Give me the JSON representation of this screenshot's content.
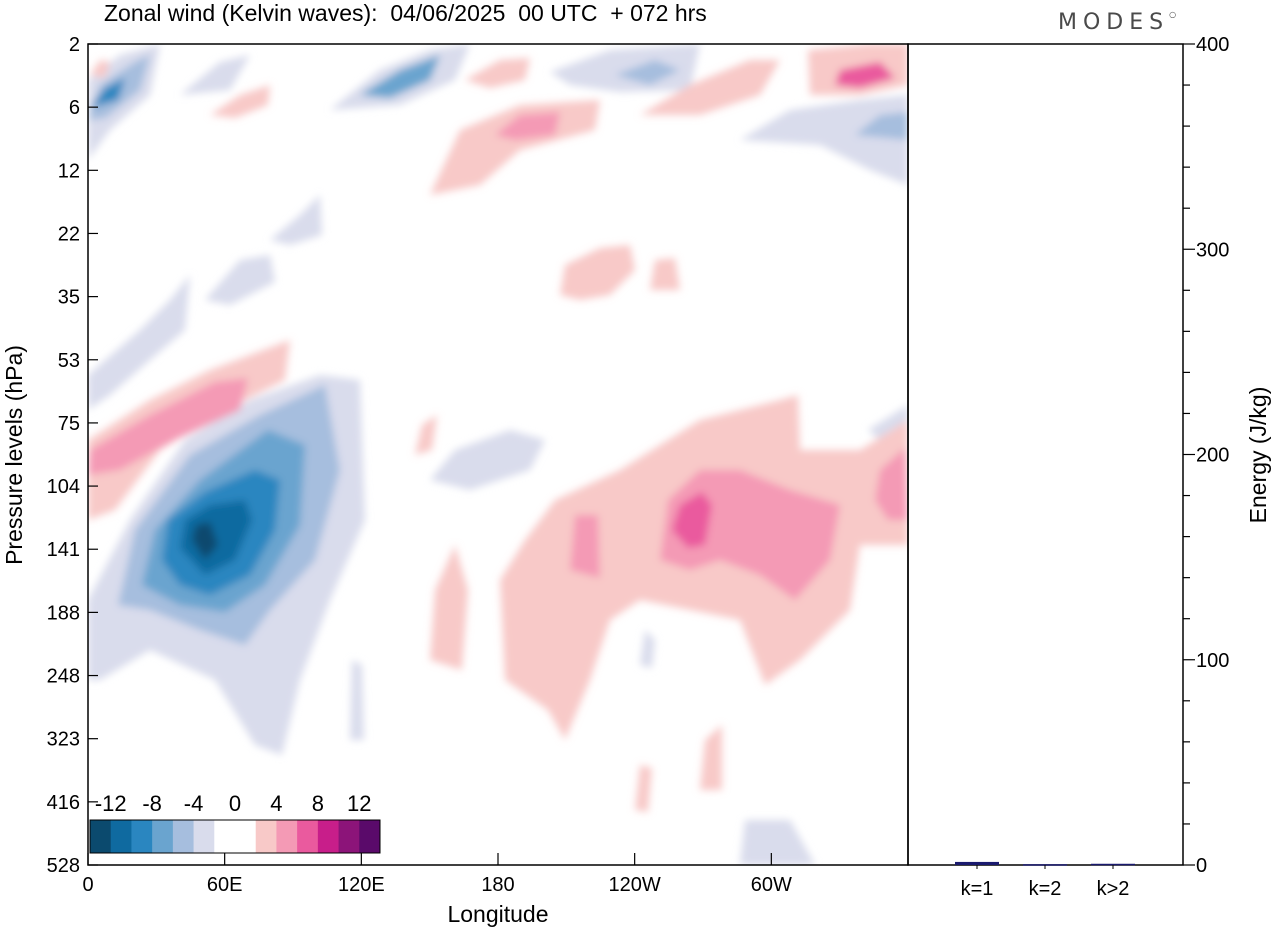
{
  "title": "Zonal wind (Kelvin waves):  04/06/2025  00 UTC  + 072 hrs",
  "brand": "MODES",
  "colors": {
    "neg": [
      "#0b4a6e",
      "#0f6aa0",
      "#2a86c0",
      "#6aa4cf",
      "#a6bede",
      "#d9dcec"
    ],
    "pos": [
      "#f8c9c8",
      "#f49ab5",
      "#ea5a9e",
      "#c81e8a",
      "#8c1479",
      "#5a0a6a"
    ],
    "bar": "#1a1a6e"
  },
  "chart_data": [
    {
      "type": "heatmap",
      "title": "",
      "xlabel": "Longitude",
      "ylabel": "Pressure levels (hPa)",
      "x_ticks": [
        "0",
        "60E",
        "120E",
        "180",
        "120W",
        "60W"
      ],
      "x_tick_degrees": [
        0,
        60,
        120,
        180,
        240,
        300
      ],
      "x_range": [
        0,
        360
      ],
      "y_ticks": [
        "2",
        "6",
        "12",
        "22",
        "35",
        "53",
        "75",
        "104",
        "141",
        "188",
        "248",
        "323",
        "416",
        "528"
      ],
      "y_scale": "log",
      "colorbar": {
        "labels": [
          "-12",
          "-8",
          "-4",
          "0",
          "4",
          "8",
          "12"
        ],
        "levels": [
          -12,
          -10,
          -8,
          -6,
          -4,
          -2,
          0,
          2,
          4,
          6,
          8,
          10,
          12
        ]
      },
      "features": [
        {
          "lon": 53,
          "p": 141,
          "value": -13
        },
        {
          "lon": 30,
          "p": 6,
          "value": -9
        },
        {
          "lon": 140,
          "p": 3.5,
          "value": -9
        },
        {
          "lon": 15,
          "p": 104,
          "value": 7
        },
        {
          "lon": 260,
          "p": 130,
          "value": 9
        },
        {
          "lon": 345,
          "p": 4,
          "value": 8
        },
        {
          "lon": 190,
          "p": 9,
          "value": 7
        }
      ]
    },
    {
      "type": "bar",
      "categories": [
        "k=1",
        "k=2",
        "k>2"
      ],
      "values": [
        1.5,
        0.4,
        0.6
      ],
      "ylabel": "Energy (J/kg)",
      "ylim": [
        0,
        400
      ],
      "y_ticks": [
        "0",
        "100",
        "200",
        "300",
        "400"
      ]
    }
  ]
}
